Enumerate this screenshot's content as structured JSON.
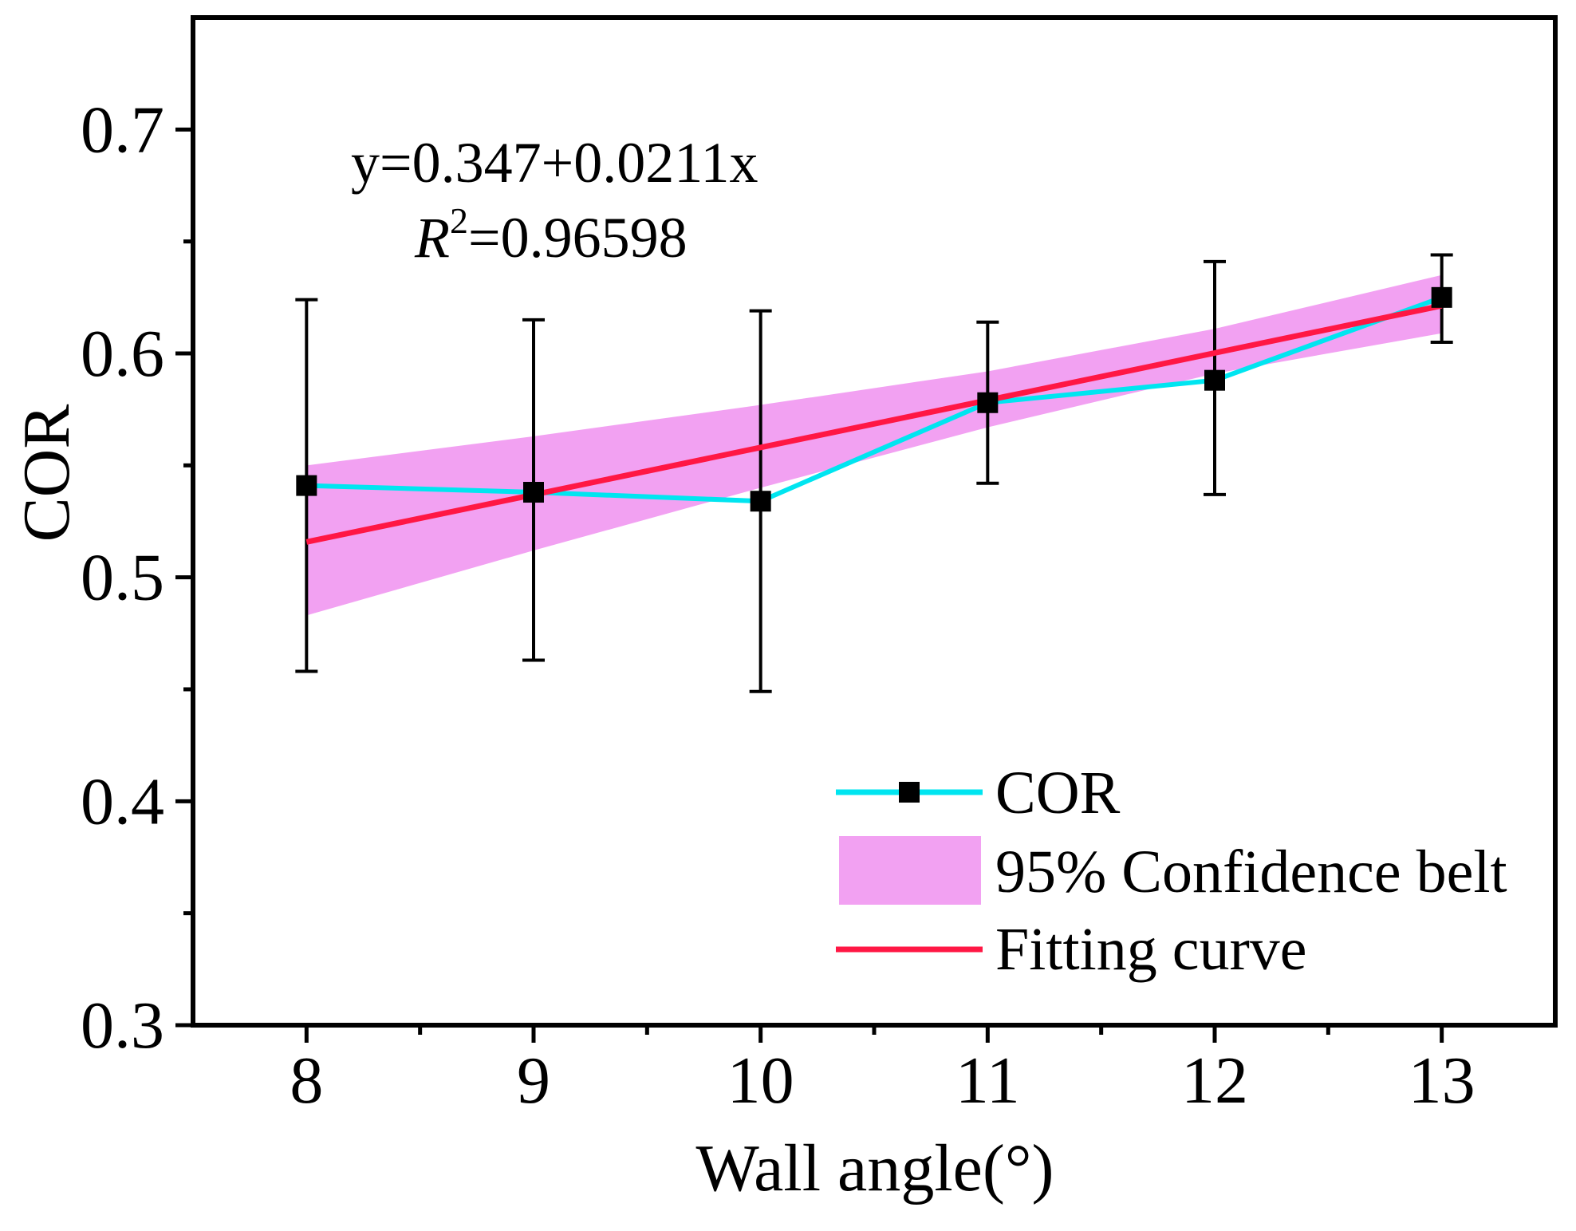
{
  "chart_data": {
    "type": "line",
    "title": "",
    "xlabel": "Wall angle(°)",
    "ylabel": "COR",
    "xlim": [
      7.5,
      13.5
    ],
    "ylim": [
      0.3,
      0.75
    ],
    "x_ticks": [
      8,
      9,
      10,
      11,
      12,
      13
    ],
    "x_tick_labels": [
      "8",
      "9",
      "10",
      "11",
      "12",
      "13"
    ],
    "y_ticks": [
      0.3,
      0.4,
      0.5,
      0.6,
      0.7
    ],
    "y_tick_labels": [
      "0.3",
      "0.4",
      "0.5",
      "0.6",
      "0.7"
    ],
    "x_minor_ticks": [
      8.5,
      9.5,
      10.5,
      11.5,
      12.5
    ],
    "y_minor_ticks": [
      0.35,
      0.45,
      0.55,
      0.65
    ],
    "series": [
      {
        "name": "COR",
        "kind": "line+markers",
        "color": "#00e5f0",
        "marker_color": "#000000",
        "x": [
          8,
          9,
          10,
          11,
          12,
          13
        ],
        "y": [
          0.541,
          0.538,
          0.534,
          0.578,
          0.588,
          0.625
        ],
        "error_low": [
          0.458,
          0.463,
          0.449,
          0.542,
          0.537,
          0.605
        ],
        "error_high": [
          0.624,
          0.615,
          0.619,
          0.614,
          0.641,
          0.644
        ]
      },
      {
        "name": "95% Confidence belt",
        "kind": "band",
        "color": "#f090f0",
        "x": [
          8,
          9,
          10,
          11,
          12,
          13
        ],
        "lower": [
          0.483,
          0.512,
          0.54,
          0.567,
          0.591,
          0.609
        ],
        "upper": [
          0.55,
          0.563,
          0.577,
          0.592,
          0.611,
          0.635
        ]
      },
      {
        "name": "Fitting curve",
        "kind": "line",
        "color": "#ff1744",
        "x": [
          8,
          13
        ],
        "y": [
          0.5158,
          0.6213
        ]
      }
    ],
    "annotations": {
      "equation": "y=0.347+0.0211x",
      "r2_symbol": "R",
      "r2_superscript": "2",
      "r2_value": "=0.96598"
    },
    "legend": {
      "position": "bottom-right",
      "entries": [
        "COR",
        "95% Confidence belt",
        "Fitting curve"
      ]
    }
  }
}
